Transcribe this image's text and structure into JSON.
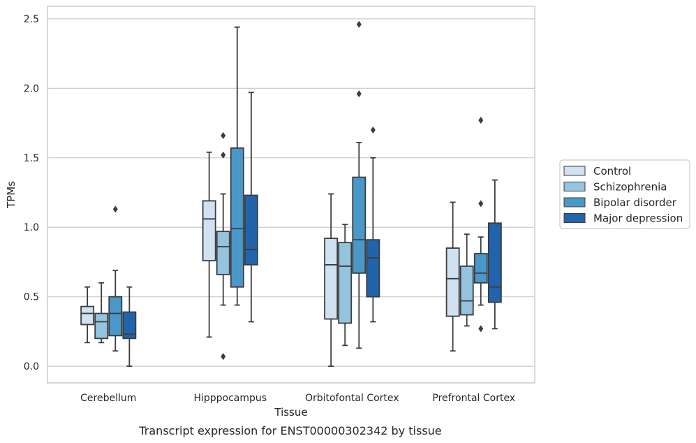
{
  "chart_data": {
    "type": "box",
    "caption": "Transcript expression for ENST00000302342 by tissue",
    "xlabel": "Tissue",
    "ylabel": "TPMs",
    "ylim": [
      -0.12,
      2.59
    ],
    "yticks": [
      0.0,
      0.5,
      1.0,
      1.5,
      2.0,
      2.5
    ],
    "ytick_labels": [
      "0.0",
      "0.5",
      "1.0",
      "1.5",
      "2.0",
      "2.5"
    ],
    "grid": "horizontal",
    "legend_position": "right",
    "categories": [
      "Cerebellum",
      "Hipppocampus",
      "Orbitofontal Cortex",
      "Prefrontal Cortex"
    ],
    "series": [
      {
        "name": "Control",
        "color": "#d0e1f2",
        "boxes": [
          {
            "whisker_low": 0.17,
            "q1": 0.3,
            "median": 0.38,
            "q3": 0.43,
            "whisker_high": 0.57,
            "outliers": []
          },
          {
            "whisker_low": 0.21,
            "q1": 0.76,
            "median": 1.06,
            "q3": 1.19,
            "whisker_high": 1.54,
            "outliers": []
          },
          {
            "whisker_low": 0.0,
            "q1": 0.34,
            "median": 0.73,
            "q3": 0.92,
            "whisker_high": 1.24,
            "outliers": []
          },
          {
            "whisker_low": 0.11,
            "q1": 0.36,
            "median": 0.63,
            "q3": 0.85,
            "whisker_high": 1.18,
            "outliers": []
          }
        ]
      },
      {
        "name": "Schizophrenia",
        "color": "#94c4df",
        "boxes": [
          {
            "whisker_low": 0.17,
            "q1": 0.2,
            "median": 0.32,
            "q3": 0.38,
            "whisker_high": 0.6,
            "outliers": []
          },
          {
            "whisker_low": 0.44,
            "q1": 0.66,
            "median": 0.86,
            "q3": 0.97,
            "whisker_high": 1.24,
            "outliers": [
              1.52,
              1.66,
              0.07
            ]
          },
          {
            "whisker_low": 0.15,
            "q1": 0.31,
            "median": 0.72,
            "q3": 0.89,
            "whisker_high": 1.02,
            "outliers": []
          },
          {
            "whisker_low": 0.29,
            "q1": 0.37,
            "median": 0.47,
            "q3": 0.72,
            "whisker_high": 0.95,
            "outliers": []
          }
        ]
      },
      {
        "name": "Bipolar disorder",
        "color": "#4a98c9",
        "boxes": [
          {
            "whisker_low": 0.11,
            "q1": 0.22,
            "median": 0.38,
            "q3": 0.5,
            "whisker_high": 0.69,
            "outliers": [
              1.13
            ]
          },
          {
            "whisker_low": 0.44,
            "q1": 0.57,
            "median": 0.99,
            "q3": 1.57,
            "whisker_high": 2.44,
            "outliers": []
          },
          {
            "whisker_low": 0.13,
            "q1": 0.67,
            "median": 0.91,
            "q3": 1.36,
            "whisker_high": 1.61,
            "outliers": [
              1.96,
              2.46
            ]
          },
          {
            "whisker_low": 0.44,
            "q1": 0.6,
            "median": 0.67,
            "q3": 0.81,
            "whisker_high": 0.93,
            "outliers": [
              1.17,
              1.77,
              0.27
            ]
          }
        ]
      },
      {
        "name": "Major depression",
        "color": "#2164ab",
        "boxes": [
          {
            "whisker_low": 0.0,
            "q1": 0.2,
            "median": 0.23,
            "q3": 0.39,
            "whisker_high": 0.57,
            "outliers": []
          },
          {
            "whisker_low": 0.32,
            "q1": 0.73,
            "median": 0.84,
            "q3": 1.23,
            "whisker_high": 1.97,
            "outliers": []
          },
          {
            "whisker_low": 0.32,
            "q1": 0.5,
            "median": 0.78,
            "q3": 0.91,
            "whisker_high": 1.5,
            "outliers": [
              1.7
            ]
          },
          {
            "whisker_low": 0.27,
            "q1": 0.46,
            "median": 0.57,
            "q3": 1.03,
            "whisker_high": 1.34,
            "outliers": []
          }
        ]
      }
    ]
  }
}
